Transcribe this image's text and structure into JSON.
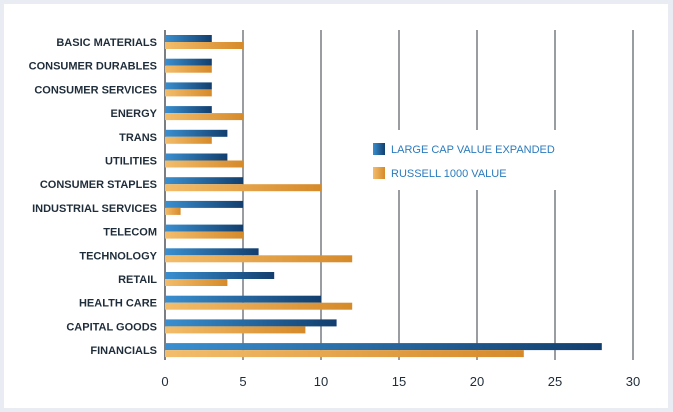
{
  "chart_data": {
    "type": "bar",
    "orientation": "horizontal",
    "categories": [
      "BASIC MATERIALS",
      "CONSUMER DURABLES",
      "CONSUMER SERVICES",
      "ENERGY",
      "TRANS",
      "UTILITIES",
      "CONSUMER STAPLES",
      "INDUSTRIAL SERVICES",
      "TELECOM",
      "TECHNOLOGY",
      "RETAIL",
      "HEALTH CARE",
      "CAPITAL GOODS",
      "FINANCIALS"
    ],
    "series": [
      {
        "name": "LARGE CAP VALUE EXPANDED",
        "color": "#1f5f96",
        "values": [
          3,
          3,
          3,
          3,
          4,
          4,
          5,
          5,
          5,
          6,
          7,
          10,
          11,
          28
        ]
      },
      {
        "name": "RUSSELL 1000 VALUE",
        "color": "#e3a043",
        "values": [
          5,
          3,
          3,
          5,
          3,
          5,
          10,
          1,
          5,
          12,
          4,
          12,
          9,
          23
        ]
      }
    ],
    "xlim": [
      0,
      30
    ],
    "xticks": [
      "0",
      "5",
      "10",
      "15",
      "20",
      "25",
      "30"
    ],
    "grid": "vertical",
    "legend_position": "center-right"
  }
}
